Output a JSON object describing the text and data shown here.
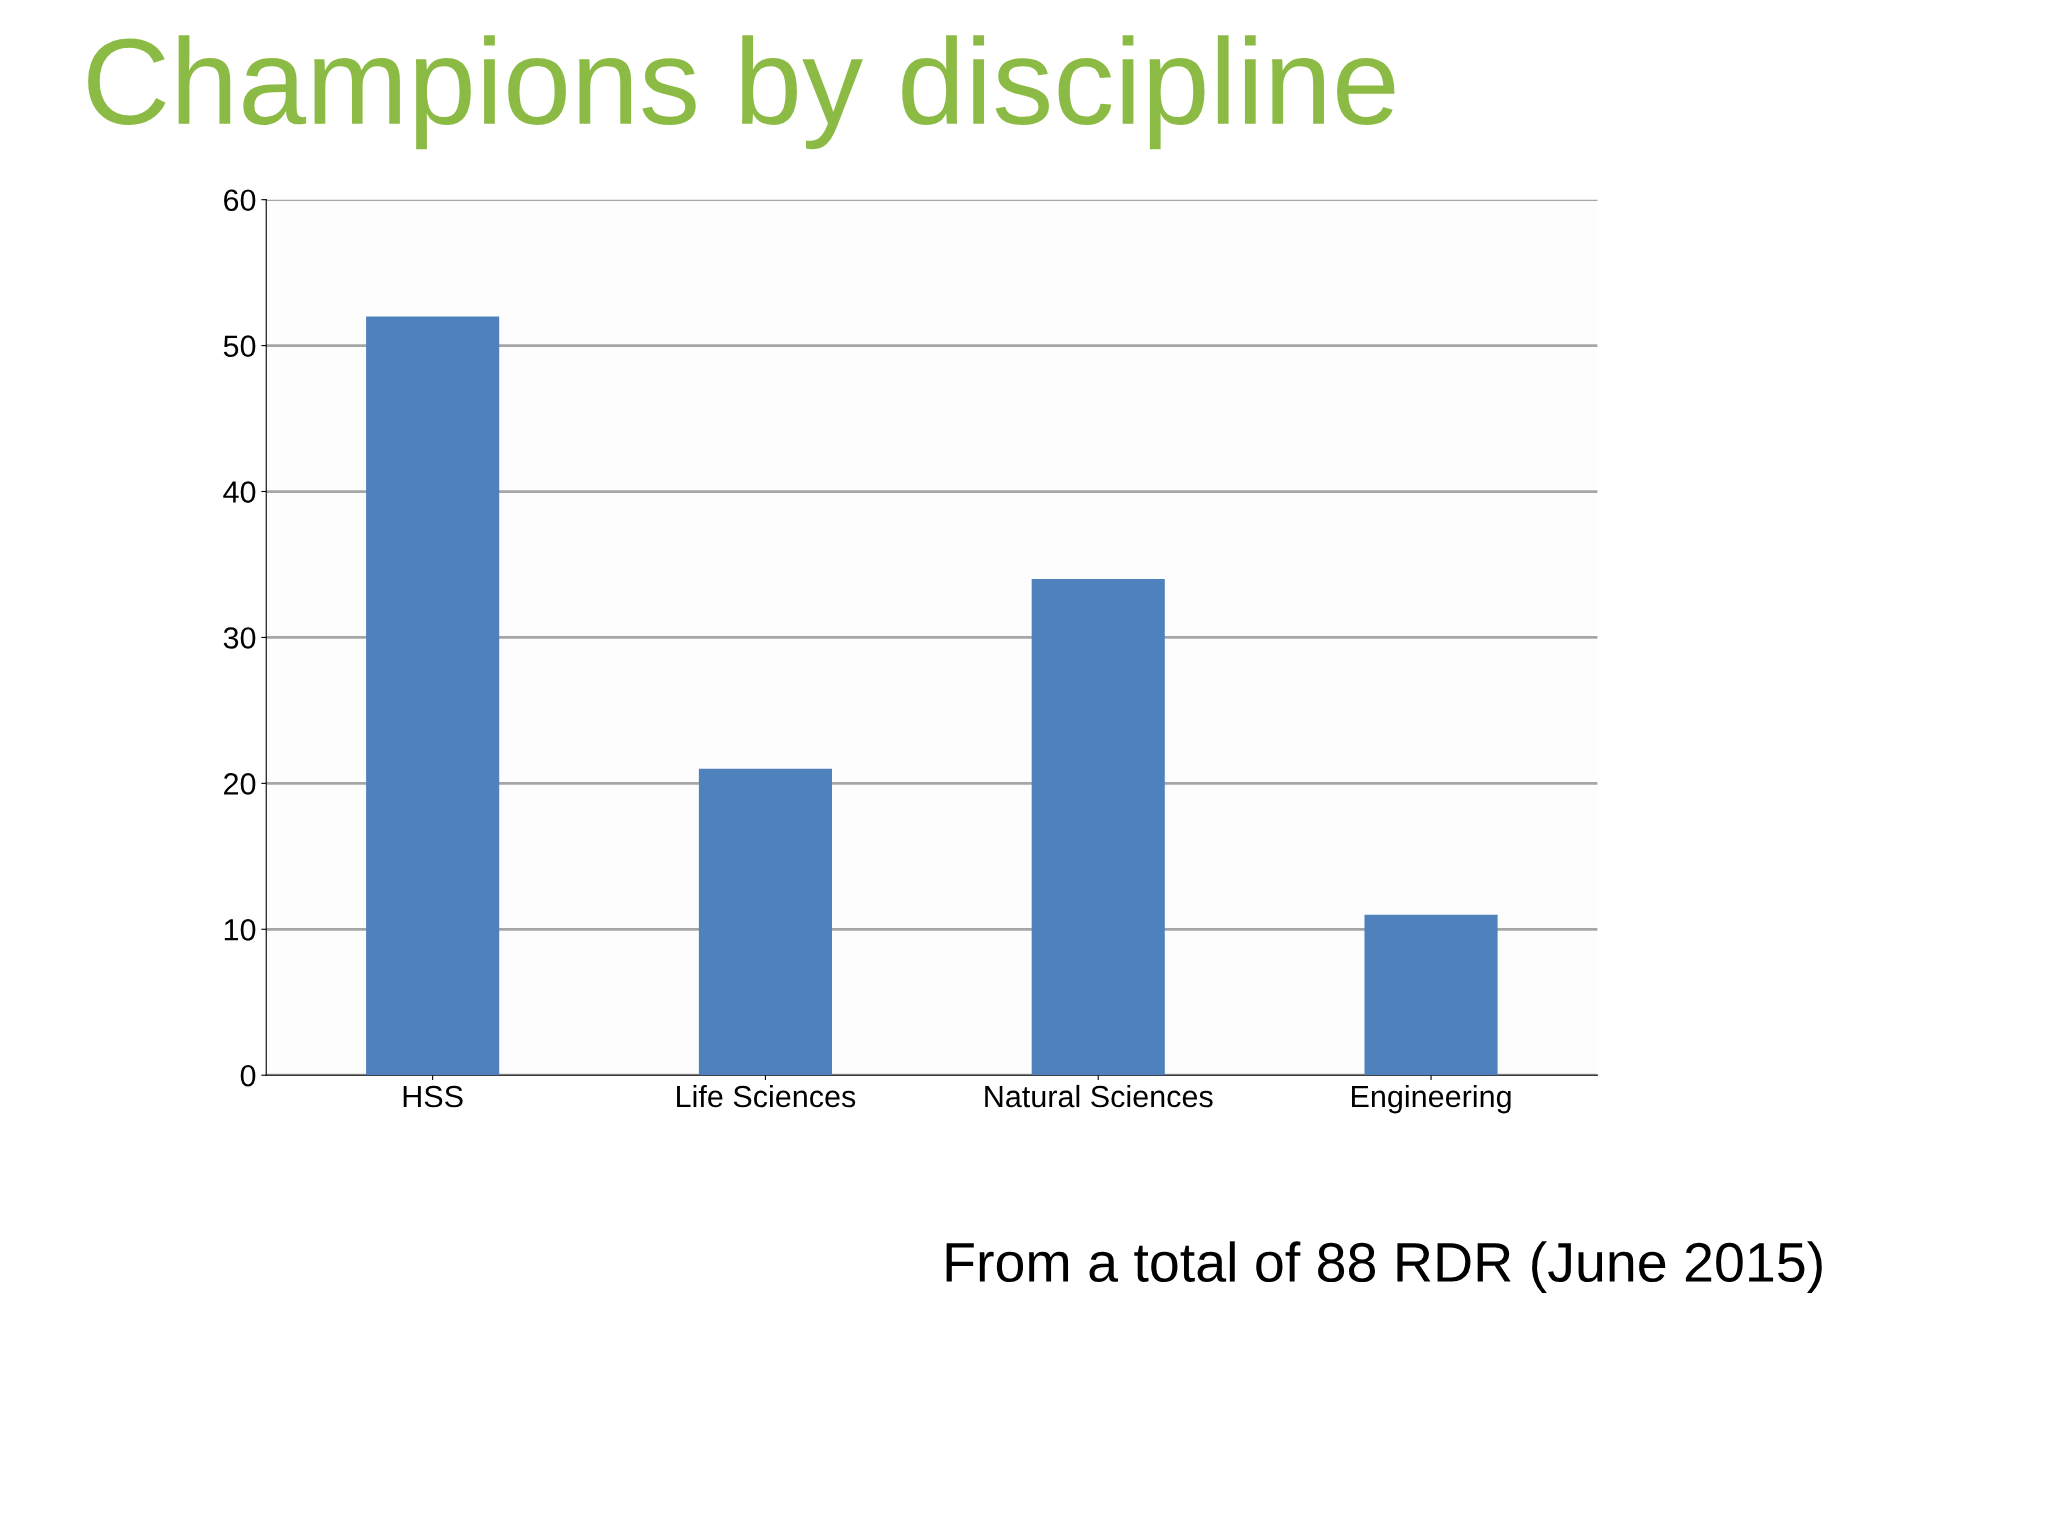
{
  "chart_data": {
    "type": "bar",
    "title": "Champions by discipline",
    "categories": [
      "HSS",
      "Life Sciences",
      "Natural Sciences",
      "Engineering"
    ],
    "values": [
      52,
      21,
      34,
      11
    ],
    "color": "#4f81bd",
    "ylim": [
      0,
      60
    ],
    "yticks": [
      0,
      10,
      20,
      30,
      40,
      50,
      60
    ],
    "grid": "y",
    "annotations": [
      "From a total of 88 RDR (June 2015)"
    ]
  }
}
